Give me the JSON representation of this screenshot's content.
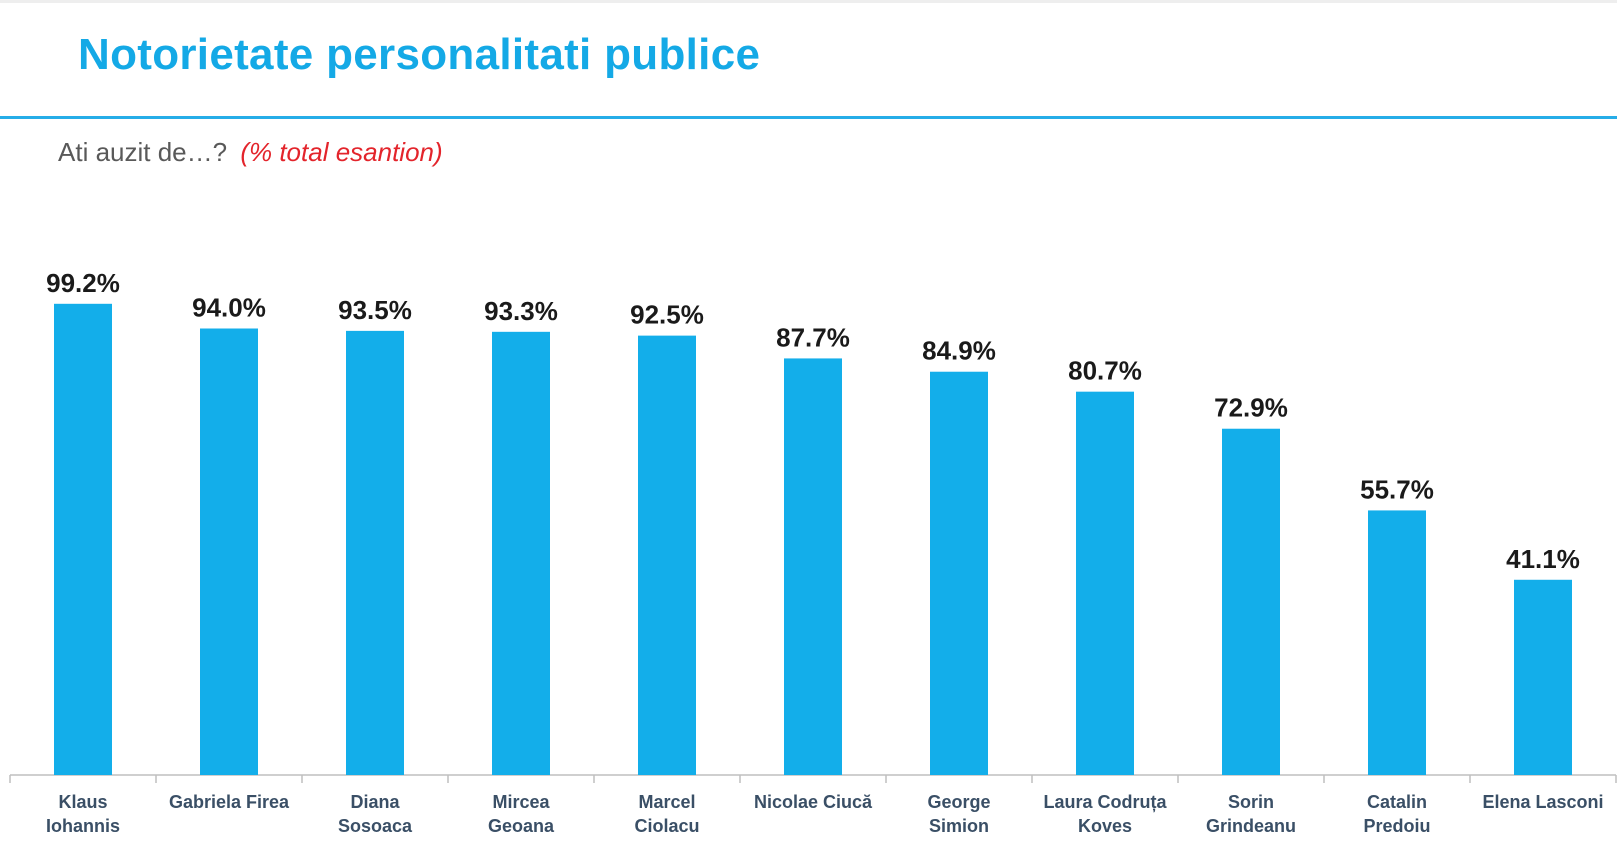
{
  "header": {
    "title": "Notorietate personalitati publice",
    "subtitle": "Ati auzit de…?",
    "subtitle_note": "(%  total esantion)"
  },
  "colors": {
    "accent": "#14a9e6",
    "bar": "#13aeea",
    "note": "#e3242b"
  },
  "chart_data": {
    "type": "bar",
    "title": "Notorietate personalitati publice",
    "subtitle": "Ati auzit de…? (%  total esantion)",
    "categories": [
      [
        "Klaus",
        "Iohannis"
      ],
      [
        "Gabriela Firea"
      ],
      [
        "Diana",
        "Sosoaca"
      ],
      [
        "Mircea",
        "Geoana"
      ],
      [
        "Marcel",
        "Ciolacu"
      ],
      [
        "Nicolae Ciucă"
      ],
      [
        "George",
        "Simion"
      ],
      [
        "Laura Codruța",
        "Koves"
      ],
      [
        "Sorin",
        "Grindeanu"
      ],
      [
        "Catalin",
        "Predoiu"
      ],
      [
        "Elena Lasconi"
      ]
    ],
    "values": [
      99.2,
      94.0,
      93.5,
      93.3,
      92.5,
      87.7,
      84.9,
      80.7,
      72.9,
      55.7,
      41.1
    ],
    "value_labels": [
      "99.2%",
      "94.0%",
      "93.5%",
      "93.3%",
      "92.5%",
      "87.7%",
      "84.9%",
      "80.7%",
      "72.9%",
      "55.7%",
      "41.1%"
    ],
    "xlabel": "",
    "ylabel": "",
    "ylim": [
      0,
      100
    ],
    "grid": false,
    "legend": "none"
  }
}
